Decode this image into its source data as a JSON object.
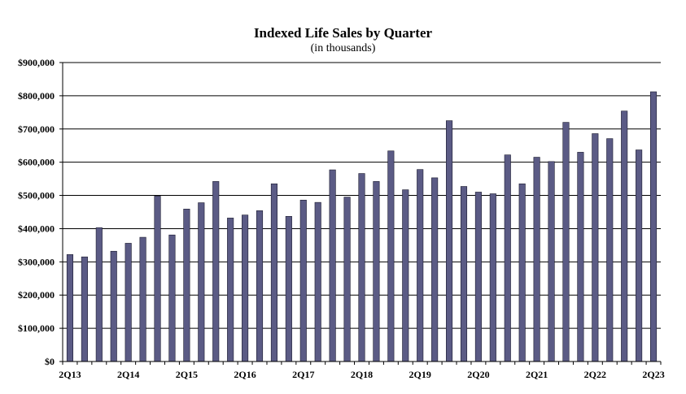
{
  "chart_data": {
    "type": "bar",
    "title": "Indexed Life Sales by Quarter",
    "subtitle": "(in thousands)",
    "xlabel": "",
    "ylabel": "",
    "ylim": [
      0,
      900000
    ],
    "y_ticks": [
      0,
      100000,
      200000,
      300000,
      400000,
      500000,
      600000,
      700000,
      800000,
      900000
    ],
    "y_tick_labels": [
      "$0",
      "$100,000",
      "$200,000",
      "$300,000",
      "$400,000",
      "$500,000",
      "$600,000",
      "$700,000",
      "$800,000",
      "$900,000"
    ],
    "grid": true,
    "bar_color": "#5b5b85",
    "categories": [
      "2Q13",
      "3Q13",
      "4Q13",
      "1Q14",
      "2Q14",
      "3Q14",
      "4Q14",
      "1Q15",
      "2Q15",
      "3Q15",
      "4Q15",
      "1Q16",
      "2Q16",
      "3Q16",
      "4Q16",
      "1Q17",
      "2Q17",
      "3Q17",
      "4Q17",
      "1Q18",
      "2Q18",
      "3Q18",
      "4Q18",
      "1Q19",
      "2Q19",
      "3Q19",
      "4Q19",
      "1Q20",
      "2Q20",
      "3Q20",
      "4Q20",
      "1Q21",
      "2Q21",
      "3Q21",
      "4Q21",
      "1Q22",
      "2Q22",
      "3Q22",
      "4Q22",
      "1Q23",
      "2Q23"
    ],
    "x_tick_labels": [
      {
        "index": 0,
        "label": "2Q13"
      },
      {
        "index": 4,
        "label": "2Q14"
      },
      {
        "index": 8,
        "label": "2Q15"
      },
      {
        "index": 12,
        "label": "2Q16"
      },
      {
        "index": 16,
        "label": "2Q17"
      },
      {
        "index": 20,
        "label": "2Q18"
      },
      {
        "index": 24,
        "label": "2Q19"
      },
      {
        "index": 28,
        "label": "2Q20"
      },
      {
        "index": 32,
        "label": "2Q21"
      },
      {
        "index": 36,
        "label": "2Q22"
      },
      {
        "index": 40,
        "label": "2Q23"
      }
    ],
    "values": [
      322000,
      315000,
      403000,
      332000,
      356000,
      374000,
      498000,
      381000,
      459000,
      478000,
      542000,
      432000,
      441000,
      454000,
      535000,
      437000,
      486000,
      479000,
      577000,
      495000,
      566000,
      542000,
      634000,
      517000,
      578000,
      553000,
      725000,
      527000,
      510000,
      505000,
      622000,
      535000,
      615000,
      602000,
      720000,
      630000,
      686000,
      671000,
      754000,
      637000,
      812000
    ]
  }
}
